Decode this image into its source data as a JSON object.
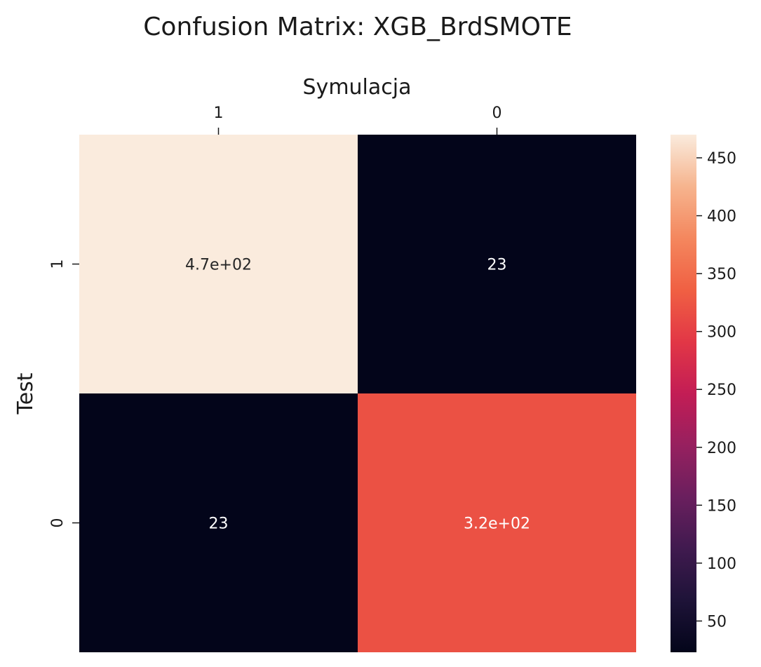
{
  "chart_data": {
    "type": "heatmap",
    "title": "Confusion Matrix: XGB_BrdSMOTE",
    "xlabel": "Symulacja",
    "ylabel": "Test",
    "x_categories": [
      "1",
      "0"
    ],
    "y_categories": [
      "1",
      "0"
    ],
    "values": [
      [
        470,
        23
      ],
      [
        23,
        320
      ]
    ],
    "annotations": [
      [
        "4.7e+02",
        "23"
      ],
      [
        "23",
        "3.2e+02"
      ]
    ],
    "colorbar": {
      "colormap": "rocket",
      "range": [
        23,
        470
      ],
      "ticks": [
        50,
        100,
        150,
        200,
        250,
        300,
        350,
        400,
        450
      ],
      "tick_labels": [
        "50",
        "100",
        "150",
        "200",
        "250",
        "300",
        "350",
        "400",
        "450"
      ]
    },
    "x_ticks_position": "top",
    "grid": false
  }
}
